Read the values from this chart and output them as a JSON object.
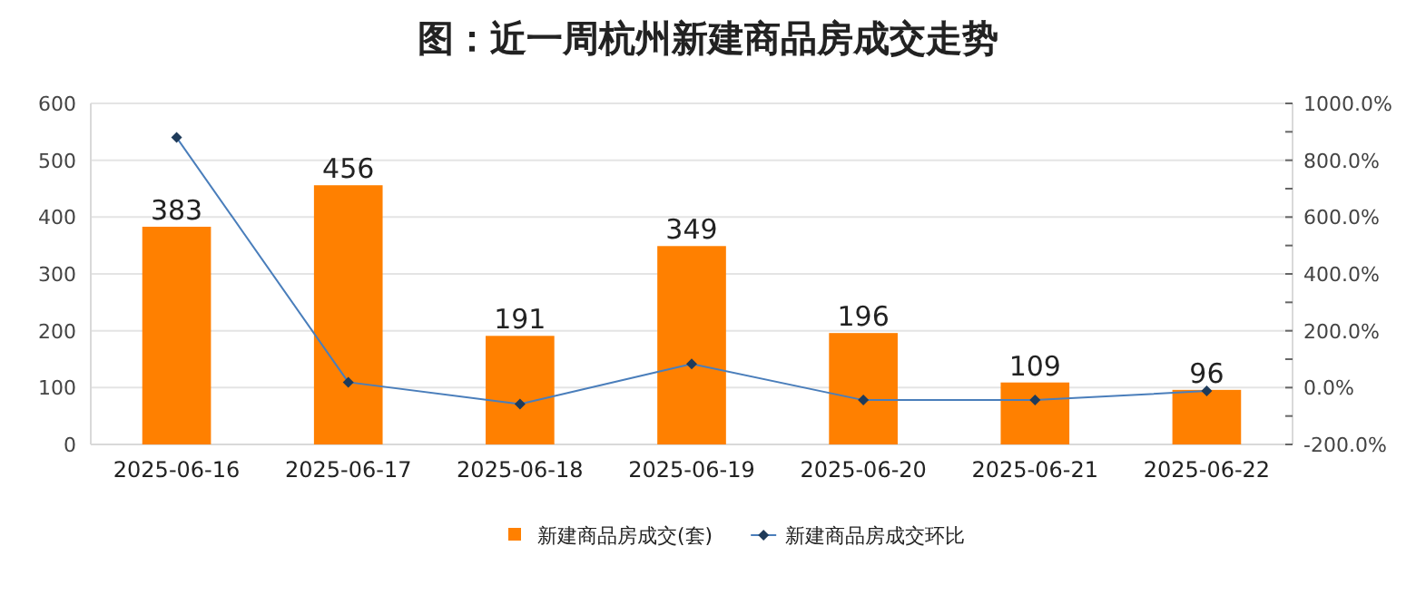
{
  "chart_data": {
    "type": "bar",
    "title": "图：近一周杭州新建商品房成交走势",
    "categories": [
      "2025-06-16",
      "2025-06-17",
      "2025-06-18",
      "2025-06-19",
      "2025-06-20",
      "2025-06-21",
      "2025-06-22"
    ],
    "series": [
      {
        "name": "新建商品房成交(套)",
        "color": "#ff8000",
        "values": [
          383,
          456,
          191,
          349,
          196,
          109,
          96
        ],
        "value_labels": [
          "383",
          "456",
          "191",
          "349",
          "196",
          "109",
          "96"
        ]
      },
      {
        "name": "新建商品房成交环比",
        "type": "line",
        "axis": "y2",
        "color": "#4a7ebb",
        "marker": "diamond",
        "values": [
          880,
          19,
          -58,
          83,
          -44,
          -44,
          -12
        ]
      }
    ],
    "ylim": [
      0,
      600
    ],
    "yticks": [
      0,
      100,
      200,
      300,
      400,
      500,
      600
    ],
    "y2lim": [
      -200,
      1000
    ],
    "y2ticks": [
      {
        "value": -200,
        "label": "-200.0%"
      },
      {
        "value": -100,
        "label": null
      },
      {
        "value": 0,
        "label": "0.0%"
      },
      {
        "value": 100,
        "label": null
      },
      {
        "value": 200,
        "label": "200.0%"
      },
      {
        "value": 300,
        "label": null
      },
      {
        "value": 400,
        "label": "400.0%"
      },
      {
        "value": 500,
        "label": null
      },
      {
        "value": 600,
        "label": "600.0%"
      },
      {
        "value": 700,
        "label": null
      },
      {
        "value": 800,
        "label": "800.0%"
      },
      {
        "value": 900,
        "label": null
      },
      {
        "value": 1000,
        "label": "1000.0%"
      }
    ],
    "grid": "y",
    "legend": "bottom"
  }
}
